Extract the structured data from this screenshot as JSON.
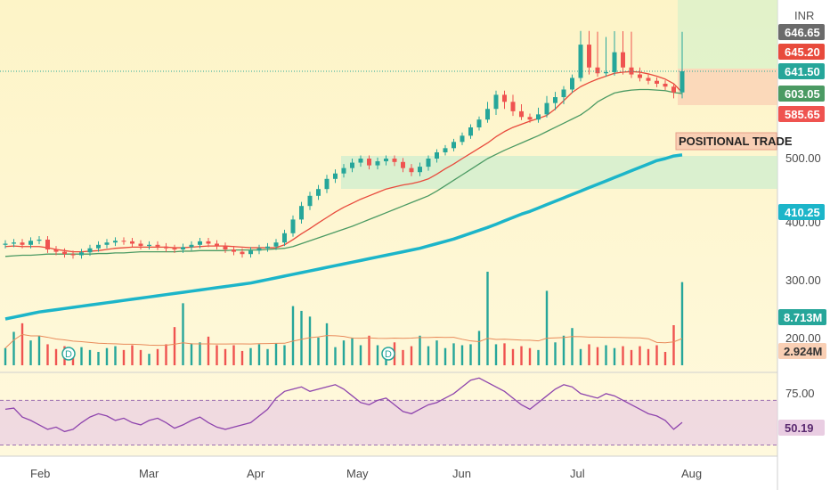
{
  "colors": {
    "bg_top": "#fdf4c7",
    "bg_bottom": "#fff9dd",
    "up": "#26a69a",
    "down": "#ef5350",
    "ema_short": "#e84a3c",
    "ema_mid": "#4b9a63",
    "ema_long": "#1cb5c9",
    "rsi": "#8e44ad",
    "rsi_band": "#e9cde2",
    "demand_zone": "#cdeecf",
    "profit_zone": "#d8f1c9",
    "loss_zone": "#f9cfb4"
  },
  "currency_label": "INR",
  "x_axis_labels": [
    "Feb",
    "Mar",
    "Apr",
    "May",
    "Jun",
    "Jul",
    "Aug"
  ],
  "price_axis_ticks": [
    "500.00",
    "400.00",
    "300.00",
    "200.00"
  ],
  "price_labels": [
    {
      "value": 646.65,
      "text": "646.65",
      "color": "#6b6b6b"
    },
    {
      "value": 645.2,
      "text": "645.20",
      "color": "#e84a3c"
    },
    {
      "value": 641.5,
      "text": "641.50",
      "color": "#26a69a"
    },
    {
      "value": 603.05,
      "text": "603.05",
      "color": "#4b9a63"
    },
    {
      "value": 585.65,
      "text": "585.65",
      "color": "#ef5350"
    },
    {
      "value": 410.25,
      "text": "410.25",
      "color": "#1cb5c9"
    }
  ],
  "volume_labels": [
    {
      "text": "8.713M",
      "color": "#26a69a"
    },
    {
      "text": "2.924M",
      "color": "#ef5350"
    }
  ],
  "rsi_axis_tick": "75.00",
  "rsi_label": {
    "text": "50.19",
    "color": "#8e44ad"
  },
  "annotation": "POSITIONAL TRADE",
  "event_markers": [
    "D",
    "D"
  ],
  "chart_data": {
    "type": "candlestick",
    "symbol_currency": "INR",
    "series": [
      {
        "name": "Price",
        "close_values": [
          370,
          372,
          368,
          375,
          377,
          360,
          356,
          352,
          350,
          355,
          362,
          368,
          372,
          375,
          374,
          370,
          366,
          368,
          365,
          362,
          360,
          364,
          368,
          374,
          370,
          366,
          360,
          356,
          352,
          358,
          362,
          365,
          372,
          388,
          410,
          430,
          445,
          455,
          470,
          478,
          486,
          494,
          500,
          490,
          496,
          500,
          495,
          486,
          480,
          488,
          500,
          512,
          520,
          532,
          544,
          560,
          575,
          590,
          602,
          596,
          588,
          580,
          575,
          585,
          595,
          600,
          610,
          630,
          645,
          642,
          638,
          640,
          644,
          642,
          636,
          630,
          625,
          620,
          615,
          605,
          641.5
        ]
      },
      {
        "name": "EMA short",
        "values": [
          365,
          366,
          365,
          365,
          365,
          363,
          360,
          358,
          356,
          356,
          357,
          358,
          360,
          362,
          363,
          364,
          364,
          364,
          364,
          364,
          363,
          363,
          364,
          365,
          366,
          366,
          366,
          365,
          364,
          363,
          363,
          363,
          363,
          368,
          377,
          387,
          396,
          405,
          413,
          421,
          428,
          434,
          440,
          445,
          450,
          455,
          458,
          461,
          463,
          466,
          470,
          477,
          485,
          492,
          500,
          510,
          520,
          530,
          542,
          552,
          560,
          566,
          572,
          577,
          583,
          590,
          597,
          605,
          615,
          622,
          628,
          633,
          638,
          640,
          641,
          640,
          637,
          633,
          628,
          620,
          605
        ]
      },
      {
        "name": "EMA mid",
        "values": [
          348,
          349,
          350,
          350,
          351,
          352,
          352,
          352,
          352,
          352,
          352,
          353,
          353,
          354,
          354,
          355,
          356,
          356,
          356,
          356,
          356,
          357,
          357,
          358,
          358,
          358,
          358,
          359,
          359,
          359,
          359,
          360,
          361,
          362,
          365,
          370,
          375,
          380,
          385,
          390,
          395,
          400,
          405,
          410,
          415,
          420,
          425,
          430,
          435,
          440,
          445,
          452,
          460,
          468,
          476,
          484,
          492,
          500,
          508,
          516,
          523,
          530,
          537,
          544,
          552,
          560,
          568,
          576,
          584,
          590,
          596,
          600,
          604,
          607,
          609,
          610,
          610,
          609,
          608,
          605,
          603
        ]
      },
      {
        "name": "EMA long",
        "values": [
          240,
          243,
          246,
          249,
          252,
          254,
          256,
          258,
          260,
          262,
          264,
          266,
          268,
          270,
          272,
          274,
          276,
          278,
          280,
          282,
          284,
          286,
          288,
          290,
          292,
          294,
          296,
          298,
          300,
          302,
          305,
          308,
          311,
          314,
          317,
          320,
          323,
          326,
          329,
          332,
          335,
          338,
          341,
          344,
          347,
          350,
          353,
          356,
          359,
          362,
          366,
          370,
          374,
          378,
          383,
          388,
          393,
          398,
          403,
          408,
          413,
          418,
          422,
          427,
          432,
          437,
          442,
          447,
          452,
          457,
          462,
          467,
          472,
          477,
          482,
          487,
          492,
          497,
          500,
          505,
          410.25
        ]
      },
      {
        "name": "Volume",
        "values": [
          1.8,
          3.5,
          4.4,
          2.6,
          3.1,
          2.2,
          1.7,
          2.0,
          1.5,
          1.9,
          1.6,
          1.4,
          1.8,
          2.0,
          1.6,
          2.1,
          1.6,
          1.2,
          1.7,
          2.2,
          4.0,
          6.5,
          2.3,
          2.4,
          3.0,
          2.1,
          1.7,
          2.1,
          1.5,
          1.8,
          2.2,
          1.7,
          2.3,
          2.1,
          6.2,
          5.7,
          5.1,
          2.9,
          4.4,
          1.9,
          2.6,
          2.9,
          2.1,
          3.1,
          2.1,
          1.8,
          2.4,
          1.6,
          2.0,
          3.1,
          2.0,
          2.6,
          1.8,
          2.3,
          2.1,
          2.2,
          3.6,
          9.8,
          2.2,
          2.3,
          1.7,
          2.0,
          1.8,
          1.6,
          7.8,
          2.4,
          3.1,
          3.9,
          1.7,
          2.2,
          1.9,
          2.1,
          1.8,
          2.0,
          1.6,
          2.0,
          1.7,
          2.1,
          1.4,
          4.2,
          8.713
        ]
      },
      {
        "name": "RSI",
        "values": [
          62,
          63,
          55,
          52,
          48,
          44,
          46,
          42,
          44,
          50,
          55,
          58,
          56,
          52,
          54,
          50,
          48,
          52,
          54,
          50,
          45,
          48,
          52,
          55,
          50,
          46,
          44,
          46,
          48,
          50,
          56,
          62,
          72,
          78,
          80,
          82,
          78,
          80,
          82,
          84,
          80,
          74,
          68,
          66,
          70,
          72,
          66,
          60,
          58,
          62,
          66,
          68,
          72,
          76,
          82,
          88,
          90,
          86,
          82,
          78,
          72,
          66,
          62,
          68,
          74,
          80,
          84,
          82,
          76,
          74,
          72,
          76,
          74,
          70,
          66,
          62,
          58,
          56,
          52,
          44,
          50.19
        ]
      }
    ],
    "y_axis_ticks": [
      500,
      400,
      300,
      200
    ],
    "ylim": [
      200,
      660
    ],
    "rsi_ylim": [
      20,
      95
    ],
    "rsi_band": [
      30,
      70
    ],
    "zones": [
      {
        "name": "demand-zone",
        "from_index": 44,
        "to_index": 80,
        "low": 460,
        "high": 500
      },
      {
        "name": "profit-zone",
        "from_index": 80,
        "to_index": 89,
        "low": 641.5,
        "high": 750
      },
      {
        "name": "loss-zone",
        "from_index": 80,
        "to_index": 89,
        "low": 590,
        "high": 641.5
      }
    ]
  }
}
